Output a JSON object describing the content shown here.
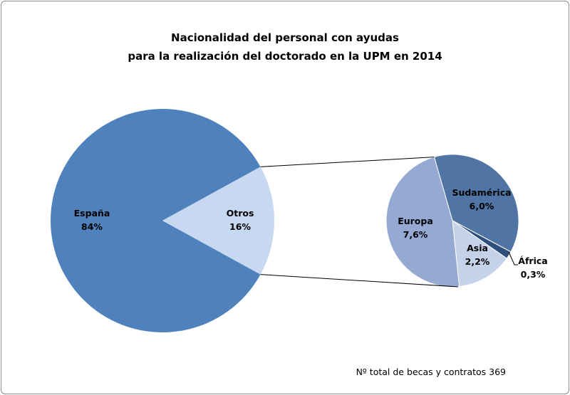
{
  "chart_data": {
    "type": "pie-of-pie",
    "title_line1": "Nacionalidad del personal con ayudas",
    "title_line2": "para la realización del doctorado en la UPM en 2014",
    "main_pie": [
      {
        "label": "España",
        "value_label": "84%",
        "value": 84,
        "color": "#4F81BD"
      },
      {
        "label": "Otros",
        "value_label": "16%",
        "value": 16,
        "color": "#C6D9F1"
      }
    ],
    "secondary_pie": [
      {
        "label": "Sudamérica",
        "value_label": "6,0%",
        "value": 6.0,
        "color": "#5075A5"
      },
      {
        "label": "África",
        "value_label": "0,3%",
        "value": 0.3,
        "color": "#2E4F7E"
      },
      {
        "label": "Asia",
        "value_label": "2,2%",
        "value": 2.2,
        "color": "#C5D3EA"
      },
      {
        "label": "Europa",
        "value_label": "7,6%",
        "value": 7.6,
        "color": "#95A9D3"
      }
    ],
    "footnote": "Nº total  de becas y contratos 369"
  }
}
